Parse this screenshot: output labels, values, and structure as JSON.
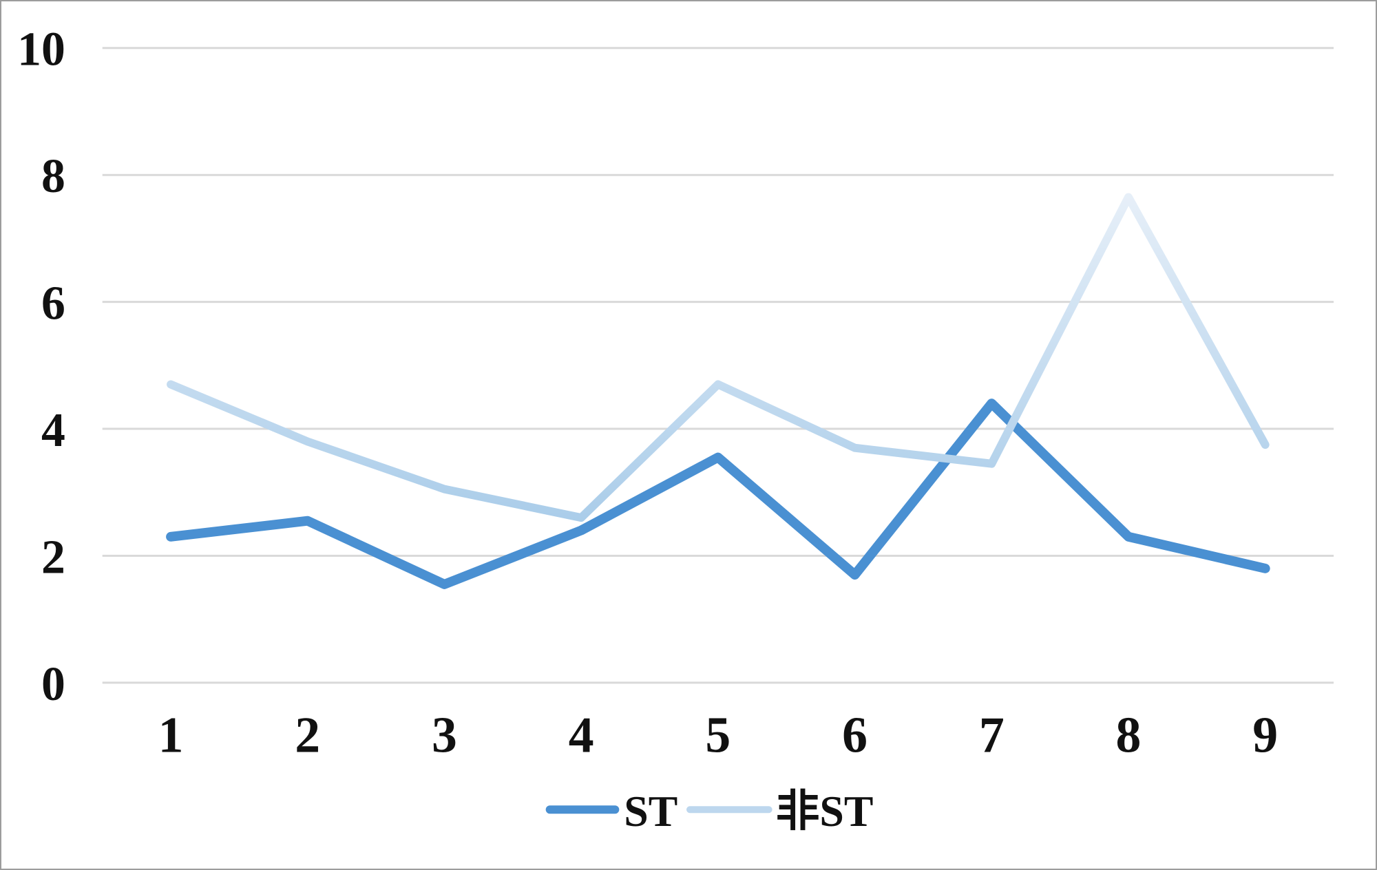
{
  "chart_data": {
    "type": "line",
    "title": "",
    "xlabel": "",
    "ylabel": "",
    "categories": [
      "1",
      "2",
      "3",
      "4",
      "5",
      "6",
      "7",
      "8",
      "9"
    ],
    "series": [
      {
        "name": "ST",
        "values": [
          2.3,
          2.55,
          1.55,
          2.4,
          3.55,
          1.7,
          4.4,
          2.3,
          1.8
        ],
        "color": "#4A90D2"
      },
      {
        "name": "非ST",
        "values": [
          4.7,
          3.8,
          3.05,
          2.6,
          4.7,
          3.7,
          3.45,
          7.65,
          3.75
        ],
        "color": "#BDD7EE",
        "color_top": "#EAF1F9",
        "color_bottom": "#A9CCE9"
      }
    ],
    "ylim": [
      0,
      10
    ],
    "yticks": [
      0,
      2,
      4,
      6,
      8,
      10
    ],
    "grid": true,
    "gridline_color": "#D9D9D9",
    "text_color": "#111111",
    "legend_position": "bottom"
  }
}
